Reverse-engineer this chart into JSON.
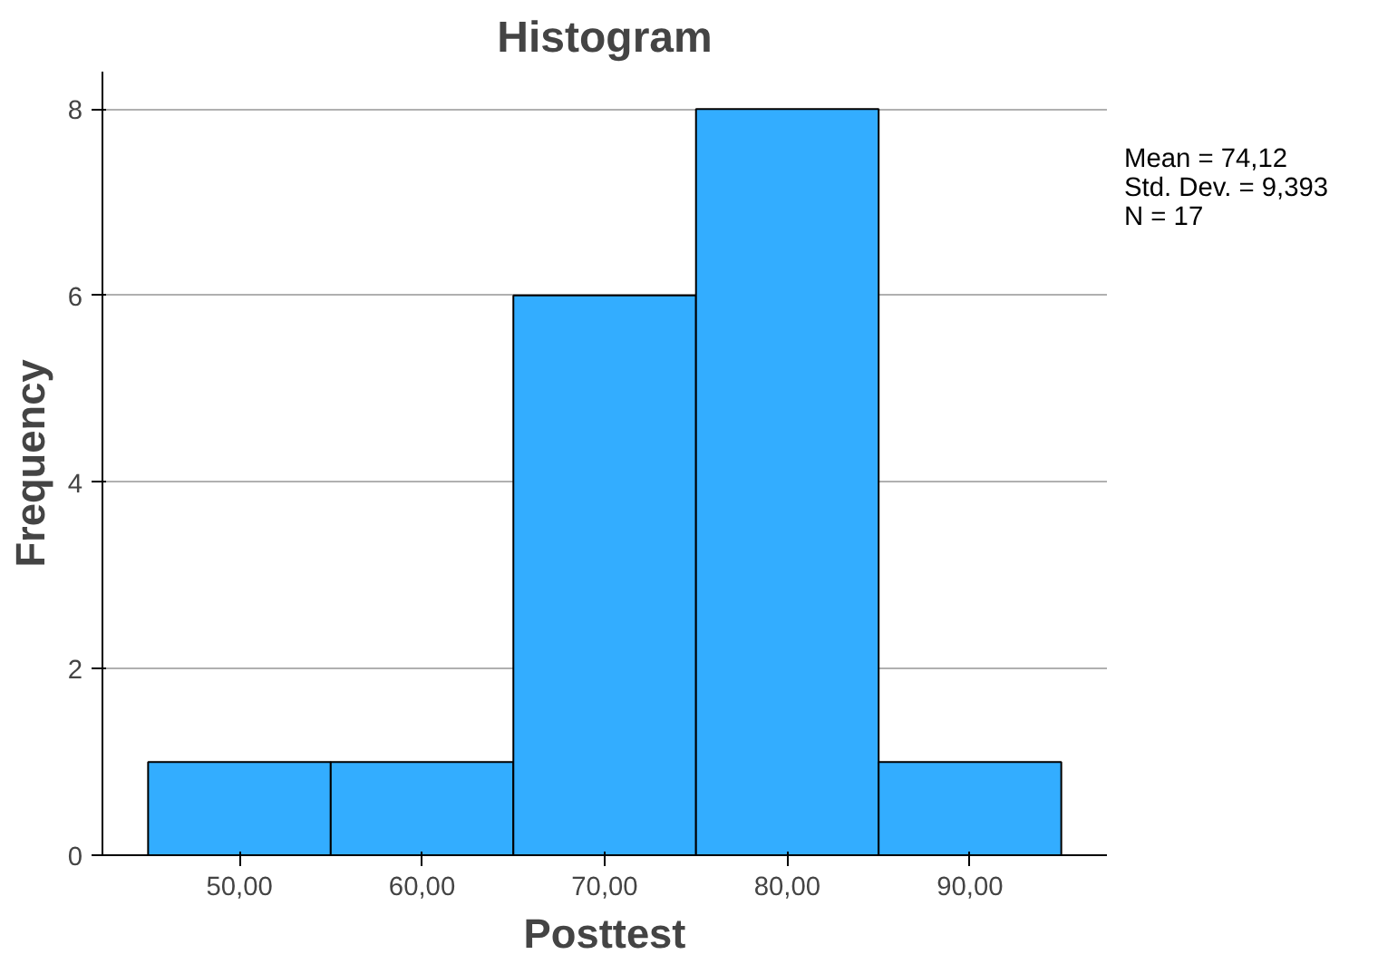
{
  "chart_data": {
    "type": "histogram",
    "title": "Histogram",
    "xlabel": "Posttest",
    "ylabel": "Frequency",
    "bins": [
      45,
      55,
      65,
      75,
      85,
      95
    ],
    "values": [
      1,
      1,
      6,
      8,
      1
    ],
    "color": "#33adff",
    "xlim": [
      42.5,
      97.5
    ],
    "ylim": [
      0,
      8.4
    ],
    "xticks": [
      {
        "value": 50,
        "label": "50,00"
      },
      {
        "value": 60,
        "label": "60,00"
      },
      {
        "value": 70,
        "label": "70,00"
      },
      {
        "value": 80,
        "label": "80,00"
      },
      {
        "value": 90,
        "label": "90,00"
      }
    ],
    "yticks": [
      0,
      2,
      4,
      6,
      8
    ],
    "grid": "y",
    "annotations": [
      "Mean = 74,12",
      "Std. Dev. = 9,393",
      "N = 17"
    ]
  }
}
